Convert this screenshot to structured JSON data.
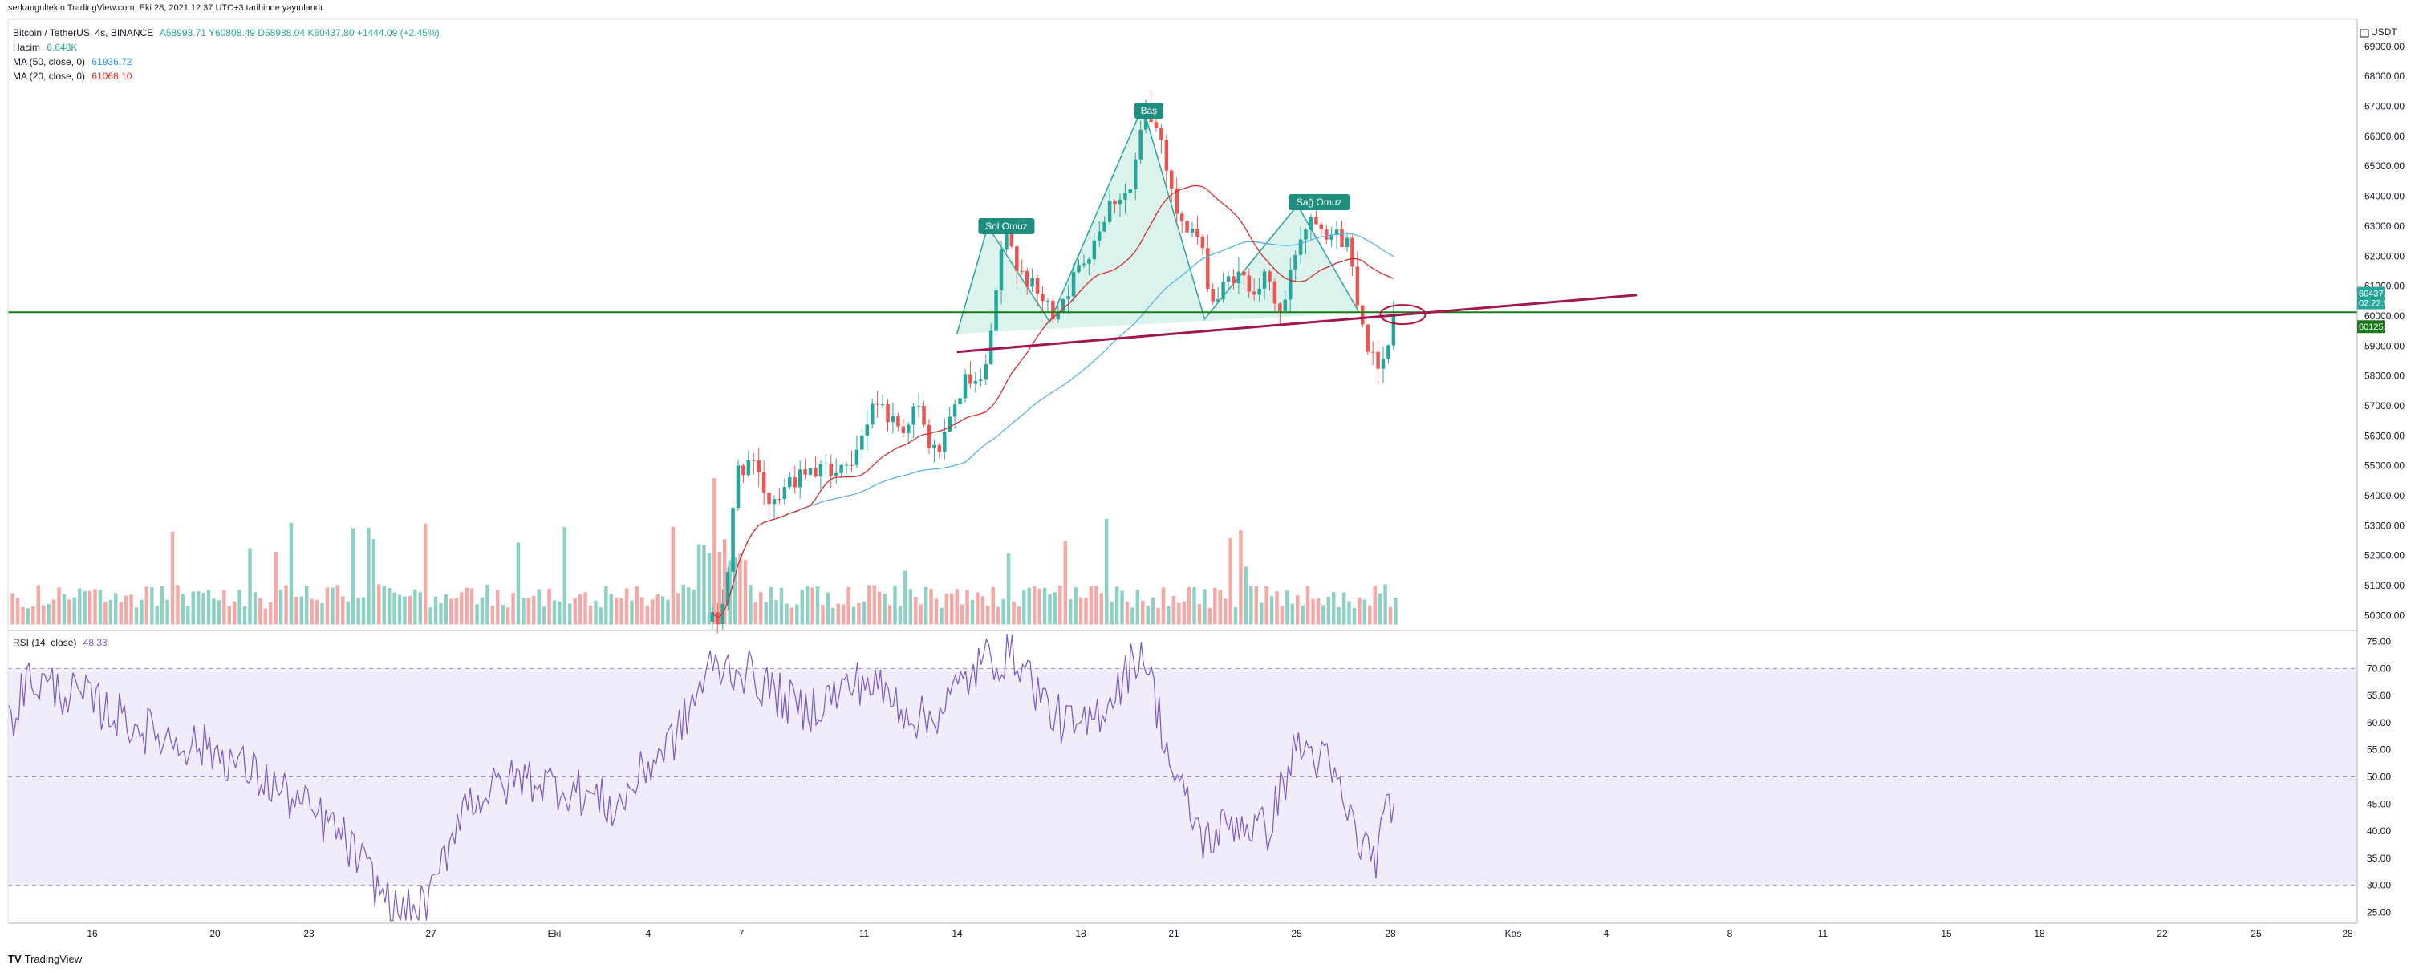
{
  "header": {
    "published": "serkangultekin TradingView.com, Eki 28, 2021 12:37 UTC+3 tarihinde yayınlandı"
  },
  "legend": {
    "symbol": "Bitcoin / TetherUS, 4s, BINANCE",
    "ohlc": "A58993.71 Y60808.49 D58988.04 K60437.80 +1444.09 (+2.45%)",
    "volume_label": "Hacim",
    "volume_value": "6.648K",
    "ma50_label": "MA (50, close, 0)",
    "ma50_value": "61936.72",
    "ma20_label": "MA (20, close, 0)",
    "ma20_value": "61068.10"
  },
  "rsi_legend": {
    "label": "RSI (14, close)",
    "value": "48.33"
  },
  "price_axis": {
    "currency": "USDT",
    "labels": [
      "69000.00",
      "68000.00",
      "67000.00",
      "66000.00",
      "65000.00",
      "64000.00",
      "63000.00",
      "62000.00",
      "61000.00",
      "60000.00",
      "59000.00",
      "58000.00",
      "57000.00",
      "56000.00",
      "55000.00",
      "54000.00",
      "53000.00",
      "52000.00",
      "51000.00",
      "50000.00"
    ],
    "last_price": "60437.80",
    "countdown": "02:22:54",
    "horizontal_line_price": "60125.62"
  },
  "rsi_axis": {
    "labels": [
      "75.00",
      "70.00",
      "65.00",
      "60.00",
      "55.00",
      "50.00",
      "45.00",
      "40.00",
      "35.00",
      "30.00",
      "25.00"
    ]
  },
  "time_axis": {
    "labels": [
      "16",
      "20",
      "23",
      "27",
      "Eki",
      "4",
      "7",
      "11",
      "14",
      "18",
      "21",
      "25",
      "28",
      "Kas",
      "4",
      "8",
      "11",
      "15",
      "18",
      "22",
      "25",
      "28"
    ]
  },
  "annotations": {
    "left_shoulder": "Sol Omuz",
    "head": "Baş",
    "right_shoulder": "Sağ Omuz"
  },
  "footer": {
    "brand": "TradingView"
  },
  "colors": {
    "up": "#26a69a",
    "down": "#ef5350",
    "ma50": "#56b3e0",
    "ma20": "#d32f2f",
    "rsi": "#7e57c2",
    "rsi_band": "#f1ecfa",
    "neckline": "#a21650",
    "support": "#1b7a1b",
    "pattern_fill": "#bfe8dc"
  },
  "chart_data": [
    {
      "type": "candlestick",
      "title": "Bitcoin / TetherUS, 4s, BINANCE",
      "ylim": [
        49500,
        69800
      ],
      "last_price": 60437.8,
      "horizontal_line": 60125.62,
      "pattern": "head-and-shoulders",
      "pattern_points": [
        {
          "date": "Eki 14",
          "price": 59400
        },
        {
          "date": "Eki 15",
          "price": 63000
        },
        {
          "date": "Eki 17",
          "price": 59800
        },
        {
          "date": "Eki 20",
          "price": 67000
        },
        {
          "date": "Eki 22",
          "price": 59900
        },
        {
          "date": "Eki 25",
          "price": 63700
        },
        {
          "date": "Eki 27",
          "price": 60100
        }
      ],
      "neckline": [
        {
          "date": "Eki 14",
          "price": 58800
        },
        {
          "date": "Kas 5",
          "price": 60700
        }
      ],
      "series": [
        {
          "name": "MA (50, close, 0)",
          "last": 61936.72
        },
        {
          "name": "MA (20, close, 0)",
          "last": 61068.1
        },
        {
          "name": "Hacim",
          "last": "6.648K"
        }
      ]
    },
    {
      "type": "line",
      "title": "RSI (14, close)",
      "ylim": [
        23,
        77
      ],
      "bands": [
        30,
        50,
        70
      ],
      "last": 48.33
    }
  ]
}
